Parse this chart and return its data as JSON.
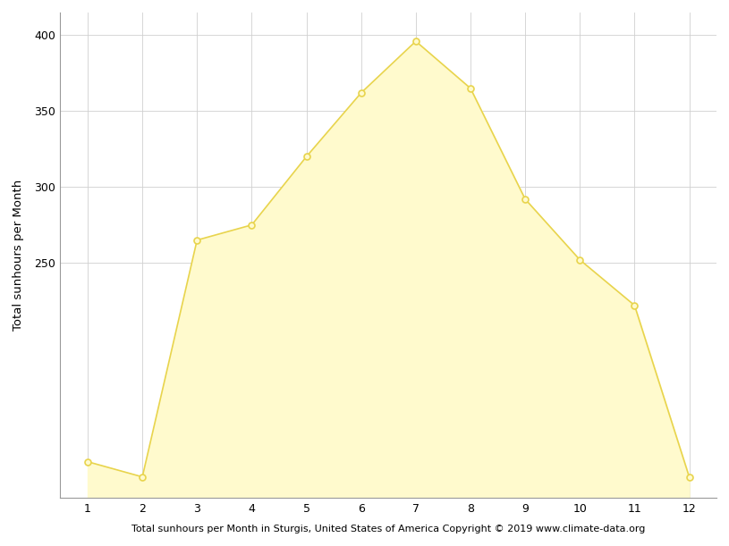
{
  "months": [
    1,
    2,
    3,
    4,
    5,
    6,
    7,
    8,
    9,
    10,
    11,
    12
  ],
  "values": [
    119,
    109,
    265,
    275,
    320,
    362,
    396,
    365,
    292,
    252,
    222,
    109
  ],
  "fill_color": "#FFFACD",
  "line_color": "#E8D44D",
  "marker_facecolor": "#FFFACD",
  "marker_edgecolor": "#E8D44D",
  "background_color": "#ffffff",
  "grid_color": "#d0d0d0",
  "ylabel": "Total sunhours per Month",
  "xlabel": "Total sunhours per Month in Sturgis, United States of America Copyright © 2019 www.climate-data.org",
  "xlim": [
    0.5,
    12.5
  ],
  "ylim": [
    95,
    415
  ],
  "yticks": [
    250,
    300,
    350,
    400
  ],
  "xticks": [
    1,
    2,
    3,
    4,
    5,
    6,
    7,
    8,
    9,
    10,
    11,
    12
  ],
  "marker_size": 5,
  "line_width": 1.2,
  "figsize": [
    8.15,
    6.11
  ],
  "dpi": 100
}
